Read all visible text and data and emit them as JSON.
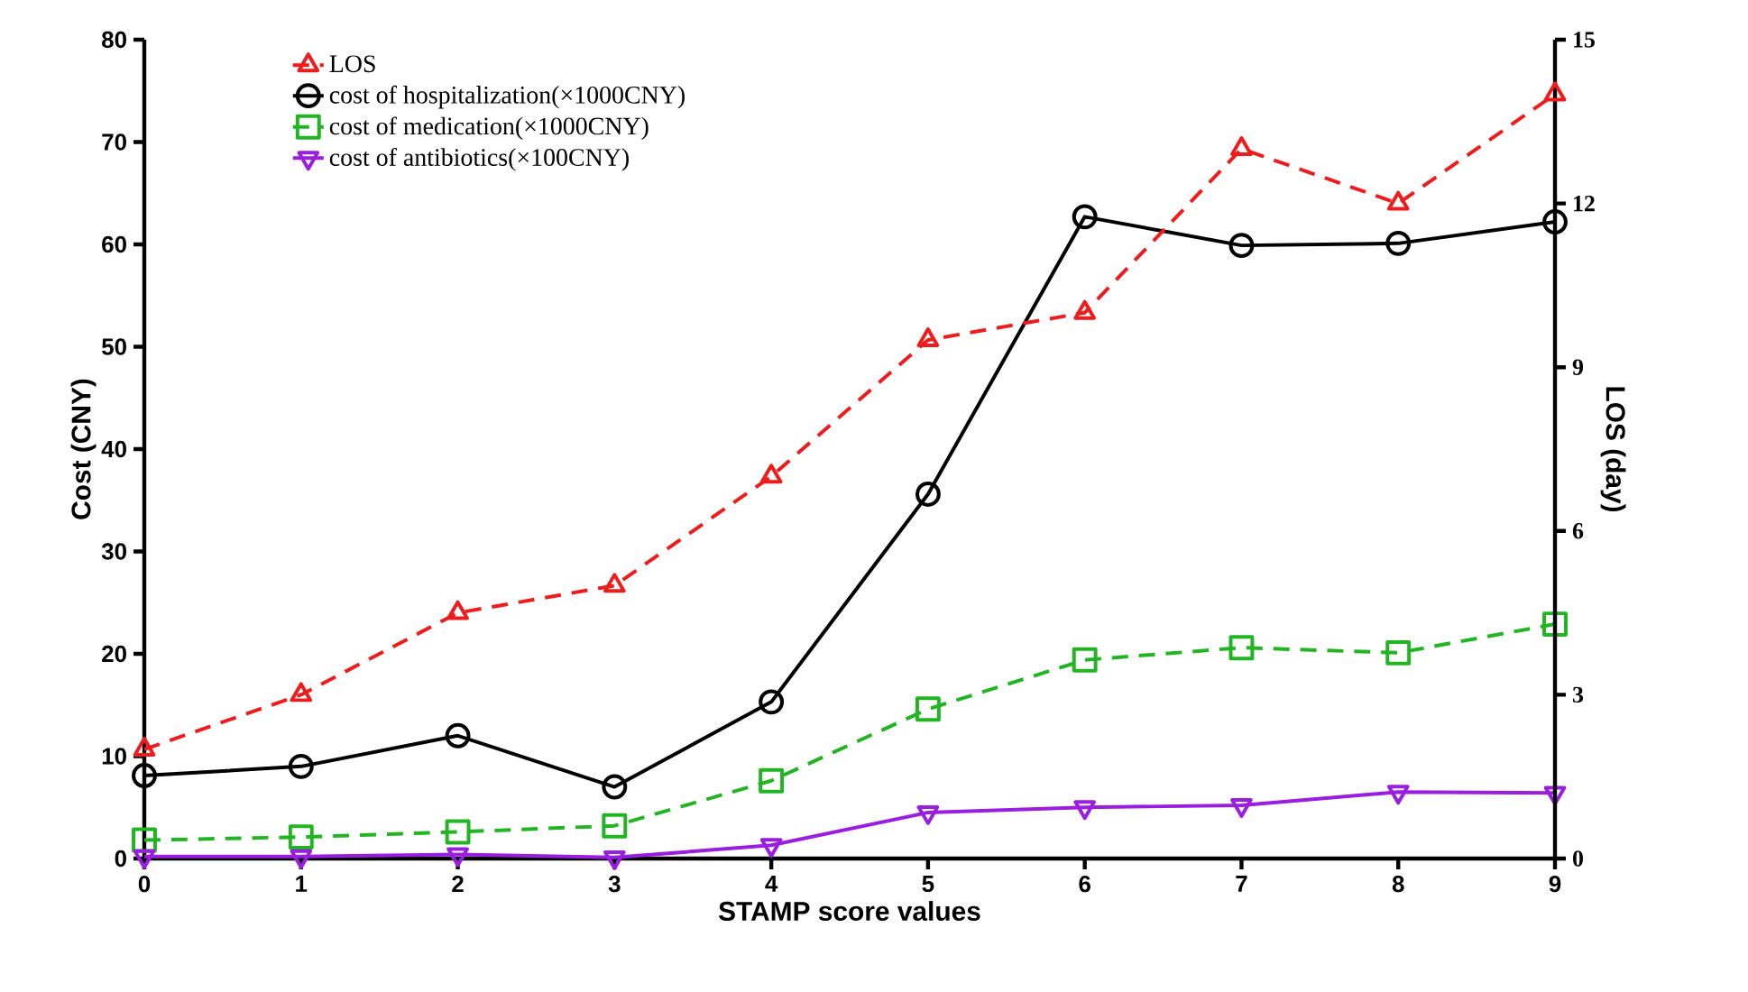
{
  "chart_data": {
    "type": "line",
    "xlabel": "STAMP score values",
    "ylabel": "Cost (CNY)",
    "y2label": "LOS (day)",
    "x": [
      0,
      1,
      2,
      3,
      4,
      5,
      6,
      7,
      8,
      9
    ],
    "xlim": [
      0,
      9
    ],
    "xticks": [
      0,
      1,
      2,
      3,
      4,
      5,
      6,
      7,
      8,
      9
    ],
    "ylim": [
      0,
      80
    ],
    "yticks": [
      0,
      10,
      20,
      30,
      40,
      50,
      60,
      70,
      80
    ],
    "y2lim": [
      0,
      15
    ],
    "y2ticks": [
      0,
      3,
      6,
      9,
      12,
      15
    ],
    "legend": "top left",
    "series": [
      {
        "name": "LOS",
        "color": "#ee1c1c",
        "axis": "y2",
        "marker": "triangle",
        "line_style": "dashed",
        "values": [
          2.0,
          3.0,
          4.5,
          5.0,
          7.0,
          9.5,
          10.0,
          13.0,
          12.0,
          14.0
        ]
      },
      {
        "name": "cost of hospitalization(×1000CNY)",
        "color": "#000000",
        "marker": "circle",
        "line_style": "solid",
        "values": [
          8.1,
          9.0,
          12.0,
          7.0,
          15.3,
          35.6,
          62.7,
          59.9,
          60.1,
          62.2
        ]
      },
      {
        "name": "cost of medication(×1000CNY)",
        "color": "#22b422",
        "marker": "square",
        "line_style": "dashed",
        "values": [
          1.8,
          2.1,
          2.6,
          3.2,
          7.6,
          14.6,
          19.4,
          20.6,
          20.1,
          22.9
        ]
      },
      {
        "name": "cost of antibiotics(×100CNY)",
        "color": "#9a1ee0",
        "marker": "triangle_down",
        "line_style": "solid",
        "values": [
          0.2,
          0.2,
          0.4,
          0.1,
          1.3,
          4.5,
          5.0,
          5.2,
          6.5,
          6.4
        ]
      }
    ]
  }
}
